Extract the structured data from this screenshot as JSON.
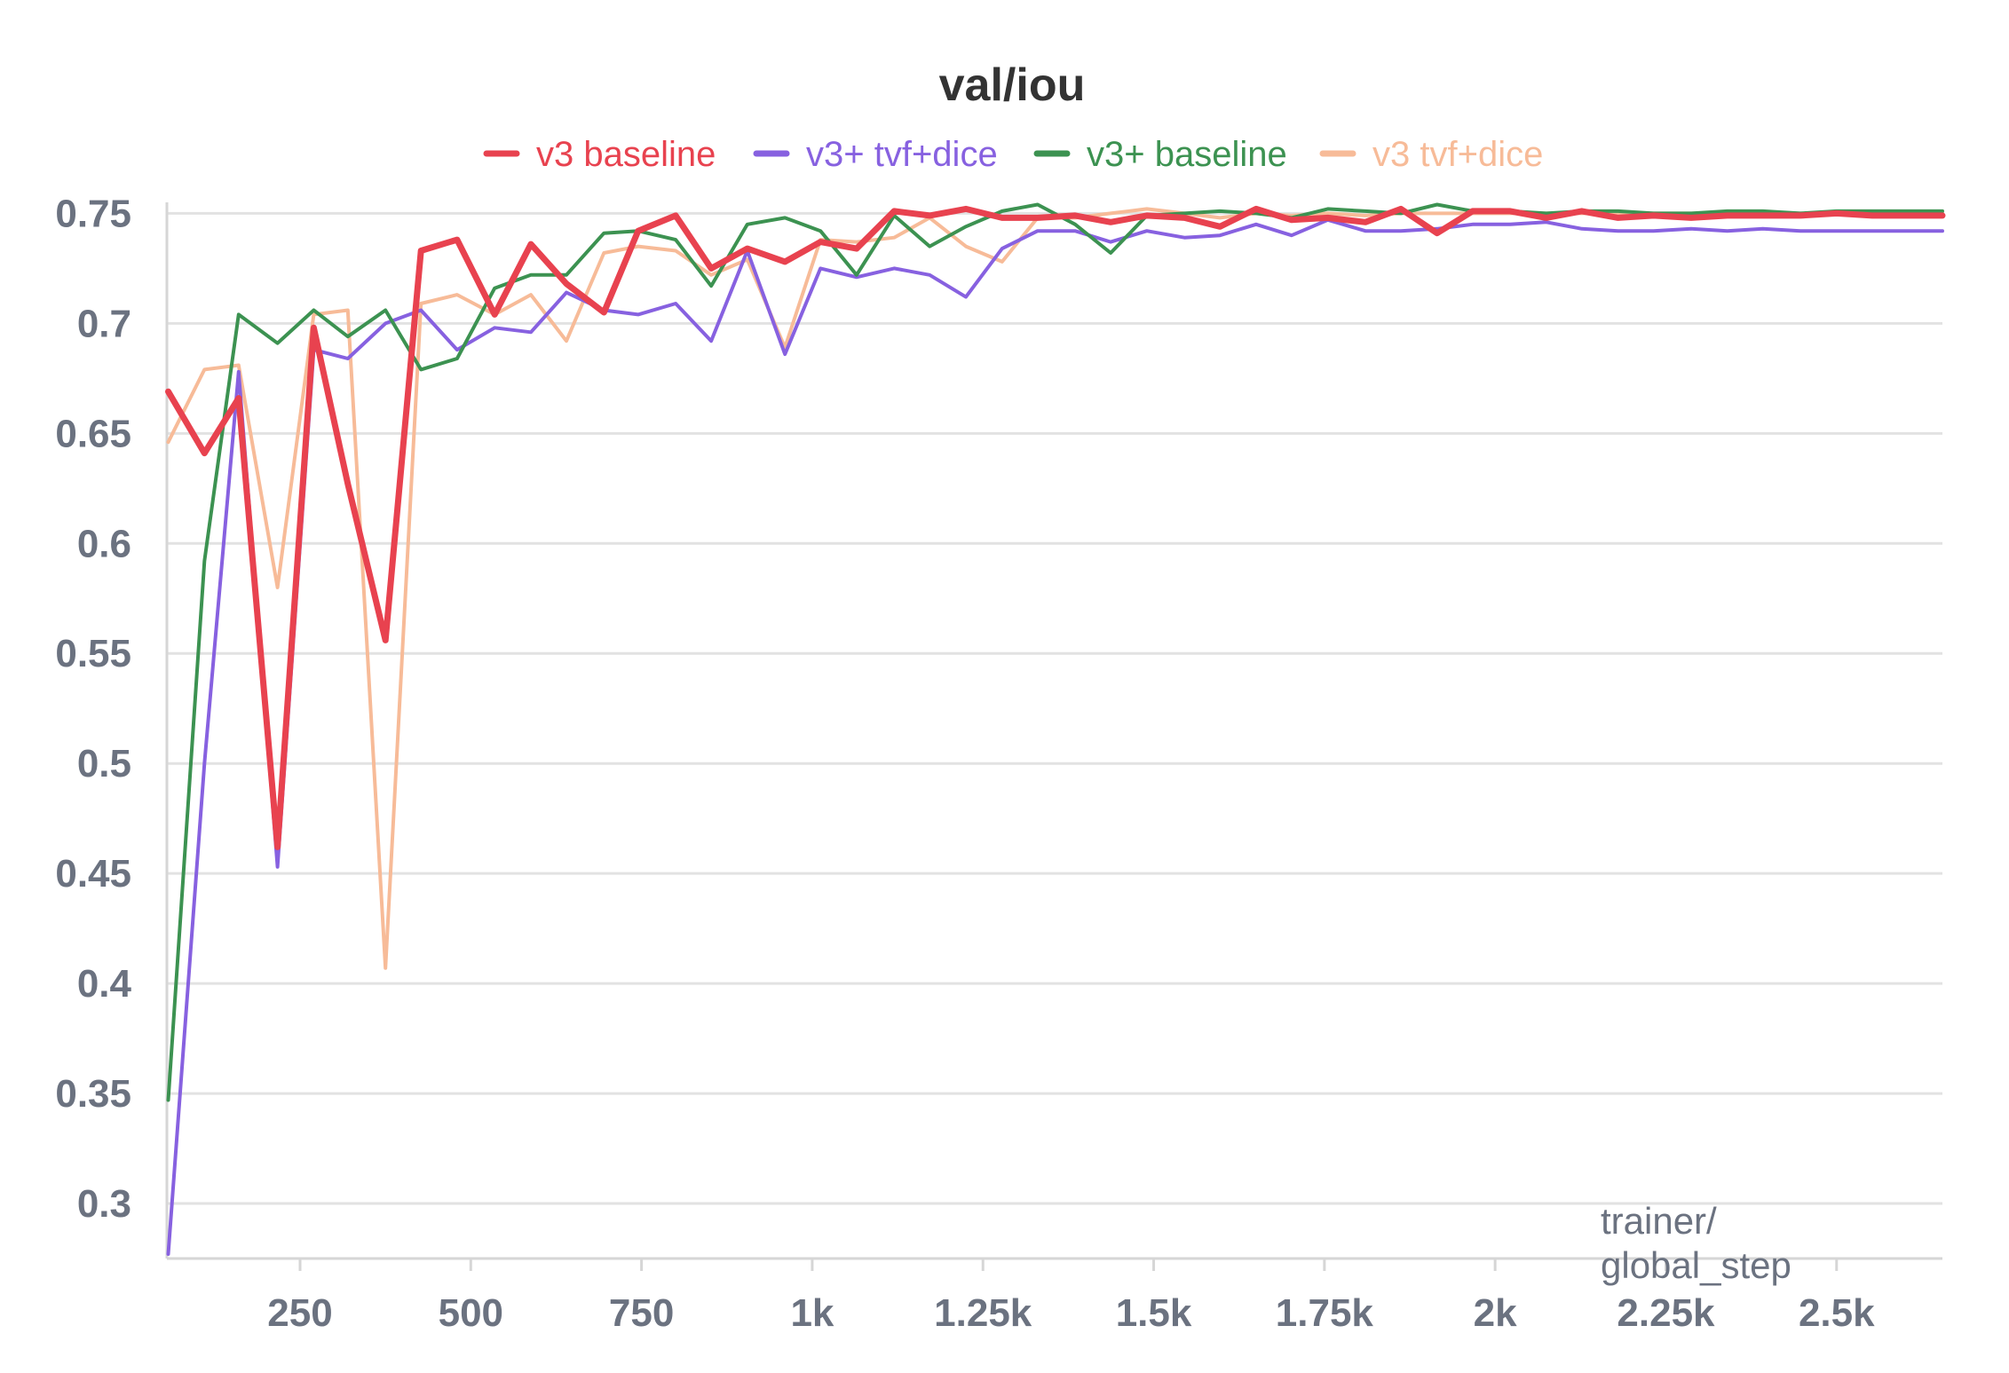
{
  "chart_data": {
    "type": "line",
    "title": "val/iou",
    "xlabel": "trainer/\nglobal_step",
    "ylabel": "",
    "xlim": [
      55,
      2655
    ],
    "ylim": [
      0.275,
      0.755
    ],
    "grid": true,
    "legend_position": "top",
    "y_ticks": [
      {
        "value": 0.3,
        "label": "0.3"
      },
      {
        "value": 0.35,
        "label": "0.35"
      },
      {
        "value": 0.4,
        "label": "0.4"
      },
      {
        "value": 0.45,
        "label": "0.45"
      },
      {
        "value": 0.5,
        "label": "0.5"
      },
      {
        "value": 0.55,
        "label": "0.55"
      },
      {
        "value": 0.6,
        "label": "0.6"
      },
      {
        "value": 0.65,
        "label": "0.65"
      },
      {
        "value": 0.7,
        "label": "0.7"
      },
      {
        "value": 0.75,
        "label": "0.75"
      }
    ],
    "x_ticks": [
      {
        "value": 250,
        "label": "250"
      },
      {
        "value": 500,
        "label": "500"
      },
      {
        "value": 750,
        "label": "750"
      },
      {
        "value": 1000,
        "label": "1k"
      },
      {
        "value": 1250,
        "label": "1.25k"
      },
      {
        "value": 1500,
        "label": "1.5k"
      },
      {
        "value": 1750,
        "label": "1.75k"
      },
      {
        "value": 2000,
        "label": "2k"
      },
      {
        "value": 2250,
        "label": "2.25k"
      },
      {
        "value": 2500,
        "label": "2.5k"
      }
    ],
    "x": [
      57,
      110,
      160,
      217,
      270,
      320,
      375,
      427,
      480,
      535,
      588,
      640,
      695,
      745,
      800,
      852,
      905,
      960,
      1012,
      1065,
      1120,
      1172,
      1225,
      1278,
      1330,
      1385,
      1437,
      1490,
      1545,
      1597,
      1650,
      1702,
      1755,
      1810,
      1862,
      1915,
      1967,
      2022,
      2075,
      2127,
      2180,
      2232,
      2287,
      2340,
      2392,
      2447,
      2500,
      2552,
      2605,
      2655
    ],
    "series": [
      {
        "name": "v3 baseline",
        "color": "#e8424f",
        "values": [
          0.669,
          0.641,
          0.666,
          0.462,
          0.698,
          0.627,
          0.556,
          0.733,
          0.738,
          0.704,
          0.736,
          0.718,
          0.705,
          0.742,
          0.749,
          0.725,
          0.734,
          0.728,
          0.737,
          0.734,
          0.751,
          0.749,
          0.752,
          0.748,
          0.748,
          0.749,
          0.746,
          0.749,
          0.748,
          0.744,
          0.752,
          0.747,
          0.748,
          0.746,
          0.752,
          0.741,
          0.751,
          0.751,
          0.748,
          0.751,
          0.748,
          0.749,
          0.748,
          0.749,
          0.749,
          0.749,
          0.75,
          0.749,
          0.749,
          0.749
        ]
      },
      {
        "name": "v3+ tvf+dice",
        "color": "#8761e0",
        "values": [
          0.277,
          0.5,
          0.678,
          0.453,
          0.688,
          0.684,
          0.7,
          0.706,
          0.688,
          0.698,
          0.696,
          0.714,
          0.706,
          0.704,
          0.709,
          0.692,
          0.733,
          0.686,
          0.725,
          0.721,
          0.725,
          0.722,
          0.712,
          0.734,
          0.742,
          0.742,
          0.737,
          0.742,
          0.739,
          0.74,
          0.745,
          0.74,
          0.747,
          0.742,
          0.742,
          0.743,
          0.745,
          0.745,
          0.746,
          0.743,
          0.742,
          0.742,
          0.743,
          0.742,
          0.743,
          0.742,
          0.742,
          0.742,
          0.742,
          0.742
        ]
      },
      {
        "name": "v3+ baseline",
        "color": "#3c9251",
        "values": [
          0.347,
          0.592,
          0.704,
          0.691,
          0.706,
          0.694,
          0.706,
          0.679,
          0.684,
          0.716,
          0.722,
          0.722,
          0.741,
          0.742,
          0.738,
          0.717,
          0.745,
          0.748,
          0.742,
          0.722,
          0.749,
          0.735,
          0.744,
          0.751,
          0.754,
          0.745,
          0.732,
          0.749,
          0.75,
          0.751,
          0.75,
          0.748,
          0.752,
          0.751,
          0.75,
          0.754,
          0.751,
          0.751,
          0.75,
          0.751,
          0.751,
          0.75,
          0.75,
          0.751,
          0.751,
          0.75,
          0.751,
          0.751,
          0.751,
          0.751
        ]
      },
      {
        "name": "v3 tvf+dice",
        "color": "#f7bb98",
        "values": [
          0.646,
          0.679,
          0.681,
          0.58,
          0.704,
          0.706,
          0.407,
          0.709,
          0.713,
          0.704,
          0.713,
          0.692,
          0.732,
          0.735,
          0.733,
          0.722,
          0.729,
          0.689,
          0.738,
          0.737,
          0.739,
          0.748,
          0.735,
          0.728,
          0.748,
          0.748,
          0.75,
          0.752,
          0.75,
          0.748,
          0.75,
          0.749,
          0.75,
          0.749,
          0.75,
          0.75,
          0.75,
          0.75,
          0.75,
          0.75,
          0.75,
          0.75,
          0.75,
          0.75,
          0.75,
          0.75,
          0.75,
          0.75,
          0.75,
          0.75
        ]
      }
    ]
  }
}
